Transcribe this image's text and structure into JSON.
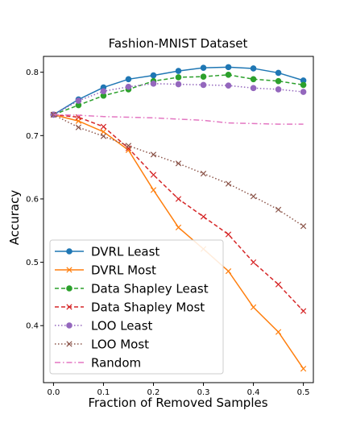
{
  "chart_data": {
    "type": "line",
    "title": "Fashion-MNIST Dataset",
    "xlabel": "Fraction of Removed Samples",
    "ylabel": "Accuracy",
    "xlim": [
      -0.02,
      0.52
    ],
    "ylim": [
      0.31,
      0.825
    ],
    "xticks": [
      0.0,
      0.1,
      0.2,
      0.3,
      0.4,
      0.5
    ],
    "xtick_labels": [
      "0.0",
      "0.1",
      "0.2",
      "0.3",
      "0.4",
      "0.5"
    ],
    "yticks": [
      0.4,
      0.5,
      0.6,
      0.7,
      0.8
    ],
    "ytick_labels": [
      "0.4",
      "0.5",
      "0.6",
      "0.7",
      "0.8"
    ],
    "grid": false,
    "legend_position": "bottom-left",
    "x": [
      0.0,
      0.05,
      0.1,
      0.15,
      0.2,
      0.25,
      0.3,
      0.35,
      0.4,
      0.45,
      0.5
    ],
    "series": [
      {
        "name": "DVRL Least",
        "color": "#1f77b4",
        "linestyle": "solid",
        "marker": "circle",
        "values": [
          0.733,
          0.757,
          0.776,
          0.789,
          0.795,
          0.802,
          0.807,
          0.808,
          0.806,
          0.799,
          0.787
        ]
      },
      {
        "name": "DVRL Most",
        "color": "#ff7f0e",
        "linestyle": "solid",
        "marker": "x",
        "values": [
          0.733,
          0.723,
          0.706,
          0.677,
          0.614,
          0.555,
          0.521,
          0.486,
          0.429,
          0.39,
          0.332
        ]
      },
      {
        "name": "Data Shapley Least",
        "color": "#2ca02c",
        "linestyle": "dashed",
        "marker": "circle",
        "values": [
          0.733,
          0.748,
          0.763,
          0.773,
          0.786,
          0.792,
          0.793,
          0.796,
          0.789,
          0.786,
          0.78
        ]
      },
      {
        "name": "Data Shapley Most",
        "color": "#d62728",
        "linestyle": "dashed",
        "marker": "x",
        "values": [
          0.733,
          0.729,
          0.714,
          0.68,
          0.638,
          0.6,
          0.572,
          0.544,
          0.5,
          0.465,
          0.423
        ]
      },
      {
        "name": "LOO Least",
        "color": "#9467bd",
        "linestyle": "dotted",
        "marker": "circle",
        "values": [
          0.733,
          0.755,
          0.77,
          0.777,
          0.782,
          0.781,
          0.78,
          0.779,
          0.775,
          0.773,
          0.769
        ]
      },
      {
        "name": "LOO Most",
        "color": "#8c564b",
        "linestyle": "dotted",
        "marker": "x",
        "values": [
          0.733,
          0.713,
          0.699,
          0.684,
          0.67,
          0.656,
          0.64,
          0.624,
          0.604,
          0.583,
          0.557
        ]
      },
      {
        "name": "Random",
        "color": "#e377c2",
        "linestyle": "dashdot",
        "marker": "none",
        "values": [
          0.733,
          0.732,
          0.73,
          0.729,
          0.728,
          0.726,
          0.724,
          0.72,
          0.719,
          0.718,
          0.718
        ]
      }
    ]
  }
}
